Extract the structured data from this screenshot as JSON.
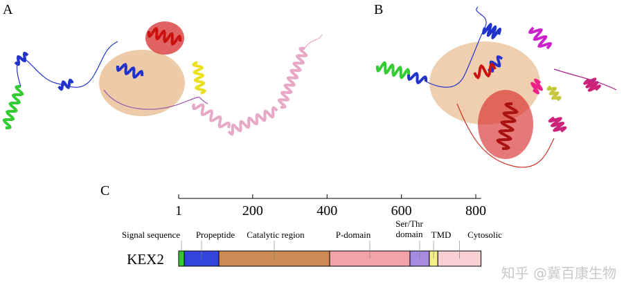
{
  "panels": {
    "a": {
      "label": "A"
    },
    "b": {
      "label": "B"
    },
    "c": {
      "label": "C"
    }
  },
  "domain_diagram": {
    "protein": "KEX2",
    "axis": {
      "lim": [
        1,
        814
      ],
      "ticks": [
        1,
        200,
        400,
        600,
        800
      ]
    },
    "segments": [
      {
        "name": "Signal sequence",
        "start": 1,
        "end": 16,
        "color": "#33cc33"
      },
      {
        "name": "Propeptide",
        "start": 16,
        "end": 109,
        "color": "#3344dd"
      },
      {
        "name": "Catalytic region",
        "start": 109,
        "end": 407,
        "color": "#cc8a55"
      },
      {
        "name": "P-domain",
        "start": 407,
        "end": 623,
        "color": "#f3a3a8"
      },
      {
        "name": [
          "Ser/Thr",
          "domain"
        ],
        "start": 623,
        "end": 675,
        "color": "#a68be0"
      },
      {
        "name": "TMD",
        "start": 675,
        "end": 698,
        "color": "#f5f08a"
      },
      {
        "name": "Cytosolic",
        "start": 698,
        "end": 814,
        "color": "#fbd0d2"
      }
    ]
  },
  "watermark": "知乎 @冀百康生物"
}
